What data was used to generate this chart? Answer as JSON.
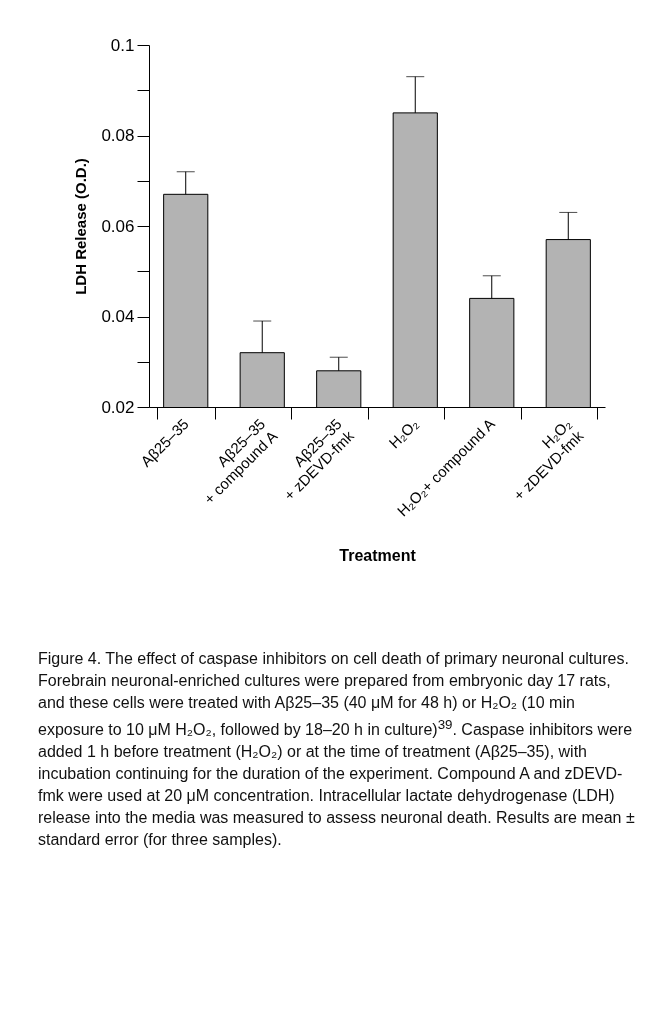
{
  "chart_data": {
    "type": "bar",
    "xlabel": "Treatment",
    "ylabel": "LDH Release (O.D.)",
    "categories": [
      "Aβ25–35",
      "Aβ25–35\n+ compound A",
      "Aβ25–35\n+ zDEVD-fmk",
      "H₂O₂",
      "H₂O₂+ compound A",
      "H₂O₂\n+ zDEVD-fmk"
    ],
    "values": [
      0.067,
      0.032,
      0.028,
      0.085,
      0.044,
      0.057
    ],
    "errors": [
      [
        0.067,
        0.072
      ],
      [
        0.032,
        0.039
      ],
      [
        0.028,
        0.031
      ],
      [
        0.085,
        0.093
      ],
      [
        0.044,
        0.049
      ],
      [
        0.057,
        0.063
      ]
    ],
    "color": "#b3b3b3",
    "ylim": [
      0.02,
      0.1
    ],
    "yticks": [
      0.02,
      {
        "value": 0.03,
        "label": null
      },
      0.04,
      {
        "value": 0.05,
        "label": null
      },
      0.06,
      {
        "value": 0.07,
        "label": null
      },
      0.08,
      {
        "value": 0.09,
        "label": null
      },
      0.1
    ],
    "annotations": [
      "Figure 4. The effect of caspase inhibitors on cell death of primary neuronal cultures. Forebrain neuronal-enriched cultures were prepared from embryonic day 17 rats, and these cells were treated with Aβ25–35 (40 μM for 48 h) or H₂O₂ (10 min exposure to 10 μM H₂O₂, followed by 18–20 h in culture)$^{39}$. Caspase inhibitors were added 1 h before treatment (H₂O₂) or at the time of treatment (Aβ25–35), with incubation continuing for the duration of the experiment. Compound A and zDEVD-fmk were used at 20 μM concentration. Intracellular lactate dehydrogenase (LDH) release into the media was measured to assess neuronal death. Results are mean ± standard error (for three samples)."
    ]
  }
}
